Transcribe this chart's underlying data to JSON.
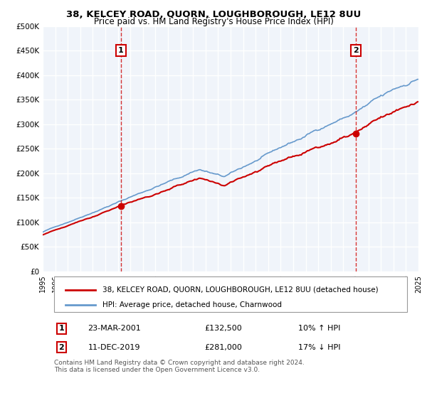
{
  "title": "38, KELCEY ROAD, QUORN, LOUGHBOROUGH, LE12 8UU",
  "subtitle": "Price paid vs. HM Land Registry's House Price Index (HPI)",
  "legend_line1": "38, KELCEY ROAD, QUORN, LOUGHBOROUGH, LE12 8UU (detached house)",
  "legend_line2": "HPI: Average price, detached house, Charnwood",
  "sale1_label": "1",
  "sale1_date": "23-MAR-2001",
  "sale1_price": "£132,500",
  "sale1_hpi": "10% ↑ HPI",
  "sale2_label": "2",
  "sale2_date": "11-DEC-2019",
  "sale2_price": "£281,000",
  "sale2_hpi": "17% ↓ HPI",
  "footnote": "Contains HM Land Registry data © Crown copyright and database right 2024.\nThis data is licensed under the Open Government Licence v3.0.",
  "red_color": "#cc0000",
  "blue_color": "#6699cc",
  "background_color": "#f0f4fa",
  "grid_color": "#ffffff",
  "vline_color": "#cc0000",
  "ylim": [
    0,
    500000
  ],
  "yticks": [
    0,
    50000,
    100000,
    150000,
    200000,
    250000,
    300000,
    350000,
    400000,
    450000,
    500000
  ],
  "xstart": 1995,
  "xend": 2025,
  "sale1_year": 2001.22,
  "sale2_year": 2019.95
}
